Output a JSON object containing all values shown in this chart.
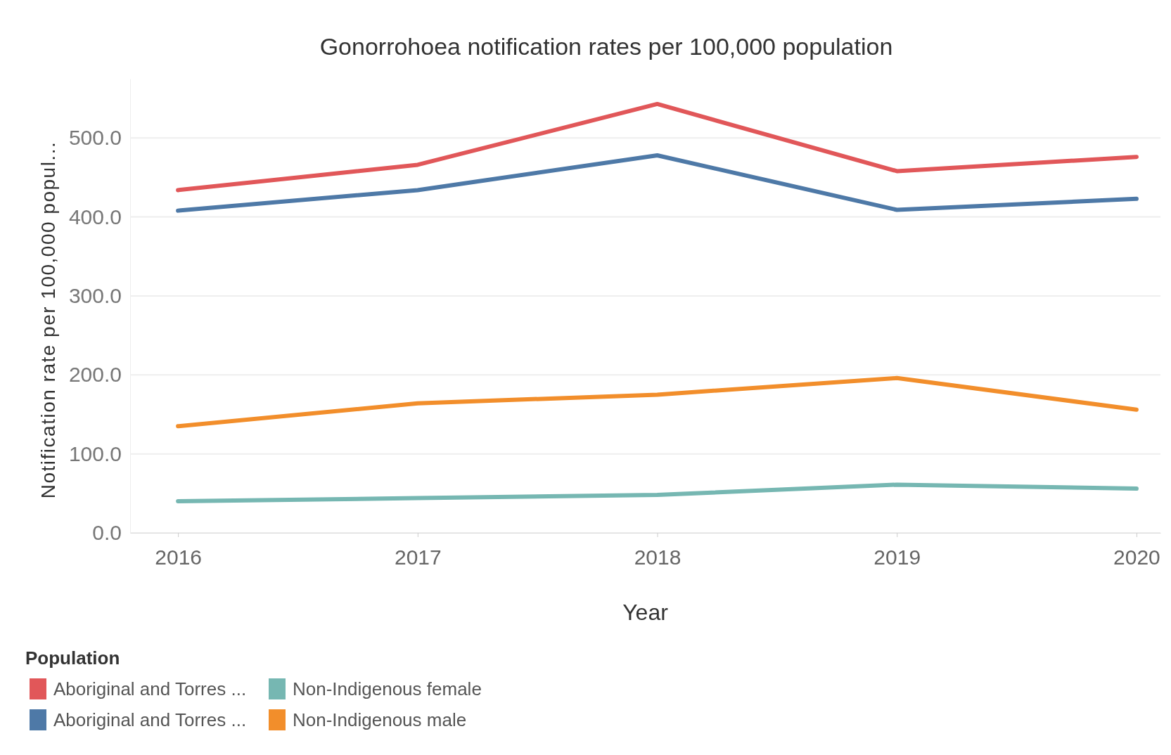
{
  "chart_data": {
    "type": "line",
    "title": "Gonorrohoea notification rates per 100,000 population",
    "xlabel": "Year",
    "ylabel": "Notification rate per 100,000 popul...",
    "legend_title": "Population",
    "x": [
      2016,
      2017,
      2018,
      2019,
      2020
    ],
    "xlim": [
      2015.8,
      2020.1
    ],
    "xticks": [
      2016,
      2017,
      2018,
      2019,
      2020
    ],
    "ylim": [
      0,
      575
    ],
    "yticks": [
      {
        "value": 0,
        "label": "0.0"
      },
      {
        "value": 100,
        "label": "100.0"
      },
      {
        "value": 200,
        "label": "200.0"
      },
      {
        "value": 300,
        "label": "300.0"
      },
      {
        "value": 400,
        "label": "400.0"
      },
      {
        "value": 500,
        "label": "500.0"
      }
    ],
    "grid": "y",
    "legend": "bottom left",
    "marker": "none",
    "line_style": "solid",
    "series": [
      {
        "name": "Aboriginal and Torres ...",
        "color": "#e15759",
        "values": [
          434,
          466,
          543,
          458,
          476
        ]
      },
      {
        "name": "Aboriginal and Torres ...",
        "color": "#4e79a7",
        "values": [
          408,
          434,
          478,
          409,
          423
        ]
      },
      {
        "name": "Non-Indigenous female",
        "color": "#76b7b2",
        "values": [
          40,
          44,
          48,
          61,
          56
        ]
      },
      {
        "name": "Non-Indigenous male",
        "color": "#f28e2b",
        "values": [
          135,
          164,
          175,
          196,
          156
        ]
      }
    ]
  }
}
